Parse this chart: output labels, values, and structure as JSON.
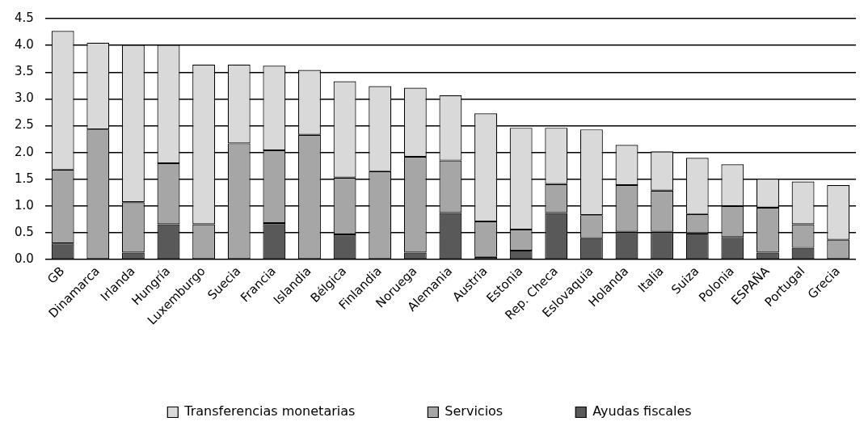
{
  "chart_data": {
    "type": "bar",
    "stacked": true,
    "categories": [
      "GB",
      "Dinamarca",
      "Irlanda",
      "Hungría",
      "Luxemburgo",
      "Suecia",
      "Francia",
      "Islandia",
      "Bélgica",
      "Finlandia",
      "Noruega",
      "Alemania",
      "Austria",
      "Estonia",
      "Rep. Checa",
      "Eslovaquia",
      "Holanda",
      "Italia",
      "Suiza",
      "Polonia",
      "ESPAÑA",
      "Portugal",
      "Grecia"
    ],
    "series": [
      {
        "name": "Ayudas fiscales",
        "color": "#595959",
        "values": [
          0.3,
          0,
          0.13,
          0.66,
          0,
          0,
          0.68,
          0,
          0.47,
          0,
          0.13,
          0.87,
          0.05,
          0.17,
          0.87,
          0.4,
          0.52,
          0.52,
          0.49,
          0.42,
          0.13,
          0.22,
          0
        ]
      },
      {
        "name": "Servicios",
        "color": "#a6a6a6",
        "values": [
          1.38,
          2.43,
          0.94,
          1.14,
          0.66,
          2.17,
          1.36,
          2.33,
          1.06,
          1.65,
          1.79,
          0.98,
          0.66,
          0.39,
          0.54,
          0.43,
          0.87,
          0.77,
          0.36,
          0.58,
          0.84,
          0.44,
          0.37
        ]
      },
      {
        "name": "Transferencias monetarias",
        "color": "#d9d9d9",
        "values": [
          2.59,
          1.62,
          2.94,
          2.21,
          2.98,
          1.47,
          1.58,
          1.21,
          1.8,
          1.59,
          1.29,
          1.22,
          2.02,
          1.9,
          1.05,
          1.6,
          0.75,
          0.73,
          1.05,
          0.78,
          0.54,
          0.8,
          1.02
        ]
      }
    ],
    "ylim": [
      0,
      4.5
    ],
    "yticks": [
      {
        "value": 0,
        "label": "0.0"
      },
      {
        "value": 0.5,
        "label": "0.5"
      },
      {
        "value": 1,
        "label": "1.0"
      },
      {
        "value": 1.5,
        "label": "1.5"
      },
      {
        "value": 2,
        "label": "2.0"
      },
      {
        "value": 2.5,
        "label": "2.5"
      },
      {
        "value": 3,
        "label": "3.0"
      },
      {
        "value": 3.5,
        "label": "3.5"
      },
      {
        "value": 4,
        "label": "4.0"
      },
      {
        "value": 4.5,
        "label": "4.5"
      }
    ],
    "grid": "y",
    "legend": "bottom"
  }
}
